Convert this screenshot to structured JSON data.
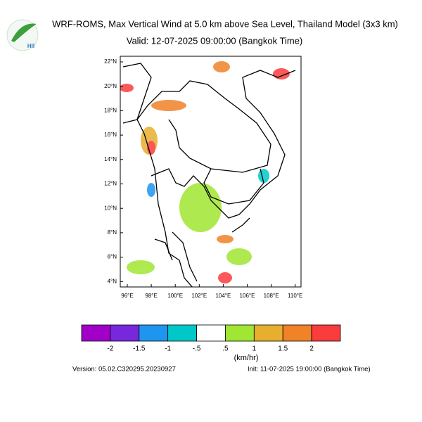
{
  "header": {
    "title": "WRF-ROMS, Max Vertical Wind at 5.0 km above Sea Level, Thailand Model (3x3 km)",
    "subtitle": "Valid: 12-07-2025 09:00:00 (Bangkok Time)",
    "logo_text": "HII"
  },
  "map": {
    "lat_labels": [
      "22°N",
      "20°N",
      "18°N",
      "16°N",
      "14°N",
      "12°N",
      "10°N",
      "8°N",
      "6°N",
      "4°N"
    ],
    "lon_labels": [
      "96°E",
      "98°E",
      "100°E",
      "102°E",
      "104°E",
      "106°E",
      "108°E",
      "110°E"
    ]
  },
  "colorbar": {
    "colors": [
      "#a000c8",
      "#7828dc",
      "#1e96f0",
      "#00c8c8",
      "#ffffff",
      "#a0e632",
      "#e6af2d",
      "#f08228",
      "#fa3c3c"
    ],
    "labels": [
      "-2",
      "-1.5",
      "-1",
      "-.5",
      ".5",
      "1",
      "1.5",
      "2"
    ],
    "unit": "(km/hr)"
  },
  "footer": {
    "version": "Version: 05.02.C320295.20230927",
    "init": "Init: 11-07-2025 19:00:00 (Bangkok Time)"
  }
}
